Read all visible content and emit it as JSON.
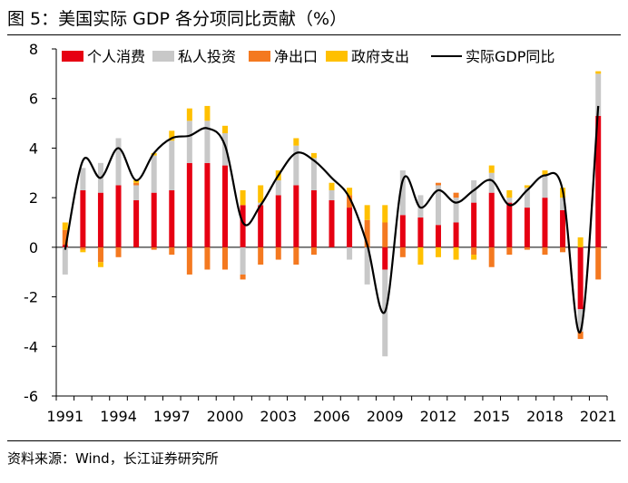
{
  "page": {
    "title": "图 5：美国实际 GDP 各分项同比贡献（%）",
    "source": "资料来源：Wind，长江证券研究所"
  },
  "chart_data": {
    "type": "bar",
    "stacked": true,
    "title": "美国实际 GDP 各分项同比贡献（%）",
    "unit": "%",
    "ylim": [
      -6,
      8
    ],
    "yticks": [
      -6,
      -4,
      -2,
      0,
      2,
      4,
      6,
      8
    ],
    "x": [
      1991,
      1992,
      1993,
      1994,
      1995,
      1996,
      1997,
      1998,
      1999,
      2000,
      2001,
      2002,
      2003,
      2004,
      2005,
      2006,
      2007,
      2008,
      2009,
      2010,
      2011,
      2012,
      2013,
      2014,
      2015,
      2016,
      2017,
      2018,
      2019,
      2020,
      2021
    ],
    "xticklabels": [
      "1991",
      "1994",
      "1997",
      "2000",
      "2003",
      "2006",
      "2009",
      "2012",
      "2015",
      "2018",
      "2021"
    ],
    "legend_position": "top",
    "series": [
      {
        "name": "个人消费",
        "color": "#e60012",
        "values": [
          0.1,
          2.3,
          2.2,
          2.5,
          1.9,
          2.2,
          2.3,
          3.4,
          3.4,
          3.3,
          1.7,
          1.7,
          2.1,
          2.5,
          2.3,
          1.9,
          1.6,
          0.0,
          -0.9,
          1.3,
          1.2,
          0.9,
          1.0,
          1.8,
          2.2,
          1.8,
          1.6,
          2.0,
          1.5,
          -2.5,
          5.3
        ]
      },
      {
        "name": "私人投资",
        "color": "#c8c8c8",
        "values": [
          -1.1,
          0.9,
          1.2,
          1.9,
          0.6,
          1.5,
          2.0,
          1.7,
          1.7,
          1.3,
          -1.1,
          0.1,
          0.6,
          1.6,
          1.3,
          0.4,
          -0.5,
          -1.5,
          -3.5,
          1.8,
          0.9,
          1.6,
          1.0,
          0.9,
          0.8,
          0.2,
          0.8,
          0.9,
          0.5,
          -0.9,
          1.7
        ]
      },
      {
        "name": "净出口",
        "color": "#f47920",
        "values": [
          0.6,
          -0.1,
          -0.6,
          -0.4,
          0.1,
          -0.1,
          -0.3,
          -1.1,
          -0.9,
          -0.9,
          -0.2,
          -0.7,
          -0.5,
          -0.7,
          -0.3,
          0.0,
          0.5,
          1.1,
          1.0,
          -0.4,
          0.0,
          0.1,
          0.2,
          -0.3,
          -0.8,
          -0.3,
          -0.1,
          -0.3,
          -0.2,
          -0.3,
          -1.3
        ]
      },
      {
        "name": "政府支出",
        "color": "#ffc000",
        "values": [
          0.3,
          -0.1,
          -0.2,
          0.0,
          0.1,
          0.1,
          0.4,
          0.5,
          0.6,
          0.3,
          0.6,
          0.7,
          0.4,
          0.3,
          0.2,
          0.3,
          0.3,
          0.6,
          0.7,
          0.0,
          -0.7,
          -0.4,
          -0.5,
          -0.2,
          0.3,
          0.3,
          0.1,
          0.2,
          0.4,
          0.4,
          0.1
        ]
      },
      {
        "name": "实际GDP同比",
        "color": "#000000",
        "type": "line",
        "smooth": true,
        "values": [
          -0.1,
          3.5,
          2.8,
          4.0,
          2.7,
          3.8,
          4.4,
          4.5,
          4.8,
          4.1,
          1.0,
          1.7,
          2.9,
          3.8,
          3.5,
          2.8,
          2.0,
          0.1,
          -2.6,
          2.7,
          1.6,
          2.3,
          1.8,
          2.3,
          2.7,
          1.7,
          2.3,
          2.9,
          2.3,
          -3.4,
          5.7
        ]
      }
    ]
  }
}
